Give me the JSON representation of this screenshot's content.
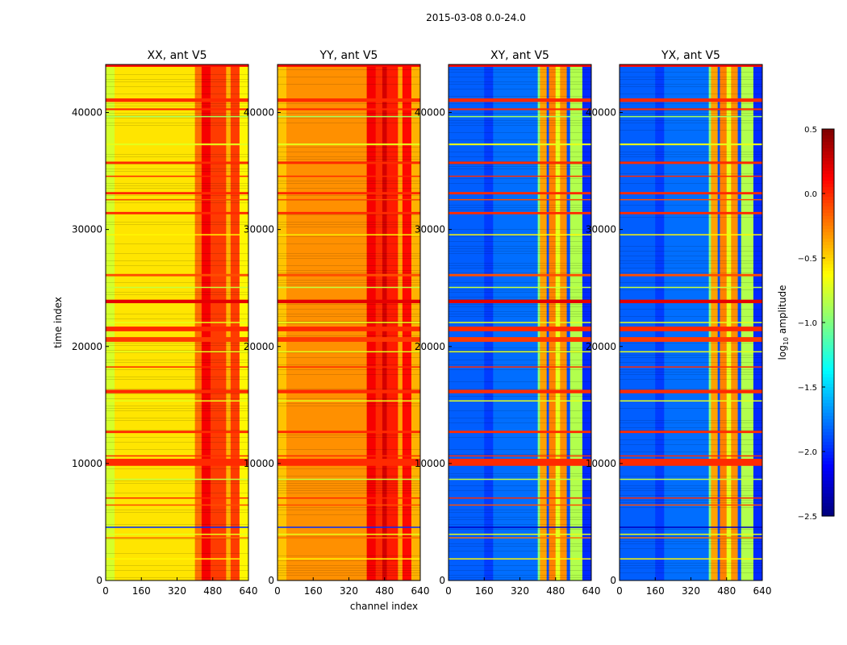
{
  "chart_data": {
    "type": "heatmap",
    "title": "2015-03-08 0.0-24.0",
    "xlabel": "channel index",
    "ylabel": "time index",
    "xlim": [
      0,
      640
    ],
    "ylim": [
      0,
      44100
    ],
    "xticks": [
      "0",
      "160",
      "320",
      "480",
      "640"
    ],
    "yticks": [
      "0",
      "10000",
      "20000",
      "30000",
      "40000"
    ],
    "colorbar": {
      "label": "log10 amplitude",
      "label_main": "log",
      "label_sub": "10",
      "label_rest": " amplitude",
      "range": [
        -2.5,
        0.5
      ],
      "ticks": [
        "0.5",
        "0.0",
        "−0.5",
        "−1.0",
        "−1.5",
        "−2.0",
        "−2.5"
      ],
      "colormap": "jet"
    },
    "flagged_rows": [
      [
        43900,
        44100,
        0.1
      ],
      [
        40900,
        41200,
        0.0
      ],
      [
        40200,
        40350,
        0.0
      ],
      [
        39600,
        39700,
        -0.9
      ],
      [
        37200,
        37350,
        -0.7
      ],
      [
        35600,
        35800,
        0.0
      ],
      [
        34500,
        34600,
        0.0
      ],
      [
        33000,
        33200,
        0.0
      ],
      [
        32500,
        32600,
        -0.1
      ],
      [
        31300,
        31500,
        0.0
      ],
      [
        29500,
        29600,
        -0.6
      ],
      [
        26000,
        26200,
        -0.1
      ],
      [
        25000,
        25100,
        -0.8
      ],
      [
        23700,
        24000,
        0.2
      ],
      [
        22000,
        22100,
        -0.7
      ],
      [
        21300,
        21700,
        0.0
      ],
      [
        20400,
        20800,
        -0.05
      ],
      [
        19500,
        19600,
        -0.7
      ],
      [
        18200,
        18300,
        0.0
      ],
      [
        16000,
        16300,
        0.0
      ],
      [
        15300,
        15400,
        -0.7
      ],
      [
        12600,
        12800,
        0.0
      ],
      [
        10600,
        10700,
        0.0
      ],
      [
        9800,
        10400,
        0.0
      ],
      [
        8600,
        8700,
        -0.8
      ],
      [
        7000,
        7100,
        0.0
      ],
      [
        6400,
        6500,
        -0.1
      ],
      [
        4500,
        4600,
        -2.0
      ],
      [
        3900,
        4000,
        -0.7
      ],
      [
        3600,
        3700,
        -0.2
      ],
      [
        1800,
        1900,
        -0.6
      ]
    ],
    "panels": [
      {
        "title": "XX, ant V5",
        "columns": [
          [
            0,
            40,
            -0.75
          ],
          [
            40,
            400,
            -0.55
          ],
          [
            400,
            430,
            -0.2
          ],
          [
            430,
            470,
            0.15
          ],
          [
            470,
            540,
            -0.05
          ],
          [
            540,
            560,
            -0.4
          ],
          [
            560,
            600,
            -0.05
          ],
          [
            600,
            640,
            -0.6
          ]
        ]
      },
      {
        "title": "YY, ant V5",
        "columns": [
          [
            0,
            40,
            -0.45
          ],
          [
            40,
            400,
            -0.3
          ],
          [
            400,
            440,
            0.15
          ],
          [
            440,
            470,
            0.0
          ],
          [
            470,
            490,
            0.25
          ],
          [
            490,
            540,
            0.05
          ],
          [
            540,
            560,
            -0.35
          ],
          [
            560,
            600,
            0.1
          ],
          [
            600,
            640,
            -0.4
          ]
        ]
      },
      {
        "title": "XY, ant V5",
        "columns": [
          [
            0,
            160,
            -1.85
          ],
          [
            160,
            200,
            -1.95
          ],
          [
            200,
            400,
            -1.8
          ],
          [
            400,
            410,
            -1.0
          ],
          [
            410,
            440,
            -0.35
          ],
          [
            440,
            450,
            -1.9
          ],
          [
            450,
            480,
            -0.25
          ],
          [
            480,
            500,
            -0.7
          ],
          [
            500,
            530,
            -0.3
          ],
          [
            530,
            545,
            -1.9
          ],
          [
            545,
            600,
            -0.85
          ],
          [
            600,
            640,
            -2.0
          ]
        ]
      },
      {
        "title": "YX, ant V5",
        "columns": [
          [
            0,
            160,
            -1.85
          ],
          [
            160,
            200,
            -1.95
          ],
          [
            200,
            400,
            -1.8
          ],
          [
            400,
            410,
            -1.0
          ],
          [
            410,
            440,
            -0.35
          ],
          [
            440,
            450,
            -1.9
          ],
          [
            450,
            480,
            -0.25
          ],
          [
            480,
            500,
            -0.7
          ],
          [
            500,
            530,
            -0.3
          ],
          [
            530,
            545,
            -1.9
          ],
          [
            545,
            600,
            -0.85
          ],
          [
            600,
            640,
            -2.0
          ]
        ]
      }
    ]
  }
}
